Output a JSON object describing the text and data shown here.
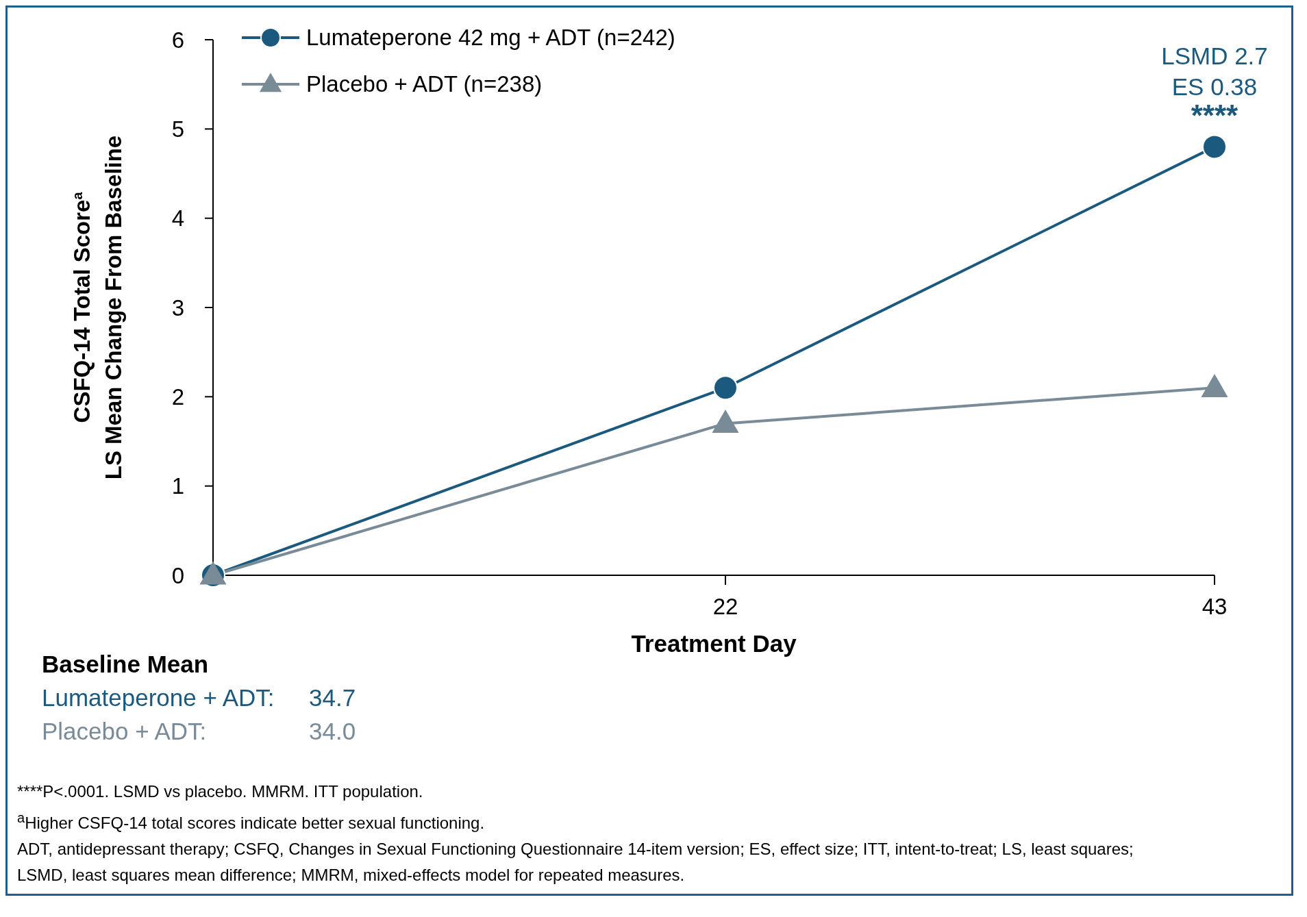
{
  "chart_data": {
    "type": "line",
    "xlabel": "Treatment Day",
    "ylabel": "CSFQ-14 Total Score$^{a}$\nLS Mean Change From Baseline",
    "x": [
      0,
      22,
      43
    ],
    "xlim": [
      0,
      43
    ],
    "xticks": [
      {
        "value": 0,
        "label": null
      },
      22,
      43
    ],
    "ylim": [
      0,
      6
    ],
    "yticks": [
      0,
      1,
      2,
      3,
      4,
      5,
      6
    ],
    "series": [
      {
        "name": "Lumateperone 42 mg + ADT (n=242)",
        "color": "#1b5a7e",
        "marker": "circle",
        "values": [
          0,
          2.1,
          4.8
        ]
      },
      {
        "name": "Placebo + ADT (n=238)",
        "color": "#7a8b98",
        "marker": "triangle",
        "values": [
          0,
          1.7,
          2.1
        ]
      }
    ],
    "grid": false,
    "legend": "top left",
    "line_style": "solid",
    "annotations": [
      {
        "text": "LSMD 2.7\nES 0.38\n****",
        "x": 43,
        "y": 4.8
      },
      "Baseline Mean",
      "Lumateperone + ADT:\t34.7",
      "Placebo + ADT:\t34.0",
      "****P<.0001. LSMD vs placebo. MMRM. ITT population.",
      "$^{a}$Higher CSFQ-14 total scores indicate better sexual functioning.",
      "ADT, antidepressant therapy; CSFQ, Changes in Sexual Functioning Questionnaire 14-item version; ES, effect size; ITT, intent-to-treat; LS, least squares;",
      "LSMD, least squares mean difference; MMRM, mixed-effects model for repeated measures."
    ]
  }
}
